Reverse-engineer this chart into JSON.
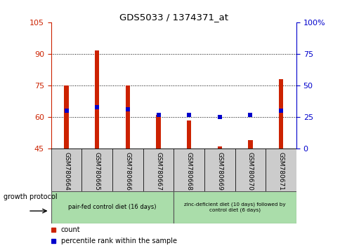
{
  "title": "GDS5033 / 1374371_at",
  "samples": [
    "GSM780664",
    "GSM780665",
    "GSM780666",
    "GSM780667",
    "GSM780668",
    "GSM780669",
    "GSM780670",
    "GSM780671"
  ],
  "count_values": [
    75.0,
    91.5,
    75.0,
    61.0,
    58.5,
    46.0,
    49.0,
    78.0
  ],
  "percentile_values": [
    30.0,
    33.0,
    31.0,
    27.0,
    27.0,
    25.0,
    27.0,
    30.0
  ],
  "ylim_left": [
    45,
    105
  ],
  "ylim_right": [
    0,
    100
  ],
  "yticks_left": [
    45,
    60,
    75,
    90,
    105
  ],
  "yticks_right": [
    0,
    25,
    50,
    75,
    100
  ],
  "ytick_labels_right": [
    "0",
    "25",
    "50",
    "75",
    "100%"
  ],
  "bar_color": "#cc2200",
  "square_color": "#0000cc",
  "group1_label": "pair-fed control diet (16 days)",
  "group2_label": "zinc-deficient diet (10 days) followed by\ncontrol diet (6 days)",
  "group1_color": "#aaddaa",
  "group2_color": "#aaddaa",
  "protocol_label": "growth protocol",
  "legend_count_label": "count",
  "legend_pct_label": "percentile rank within the sample",
  "bar_width": 0.15,
  "grid_yticks": [
    60,
    75,
    90
  ]
}
